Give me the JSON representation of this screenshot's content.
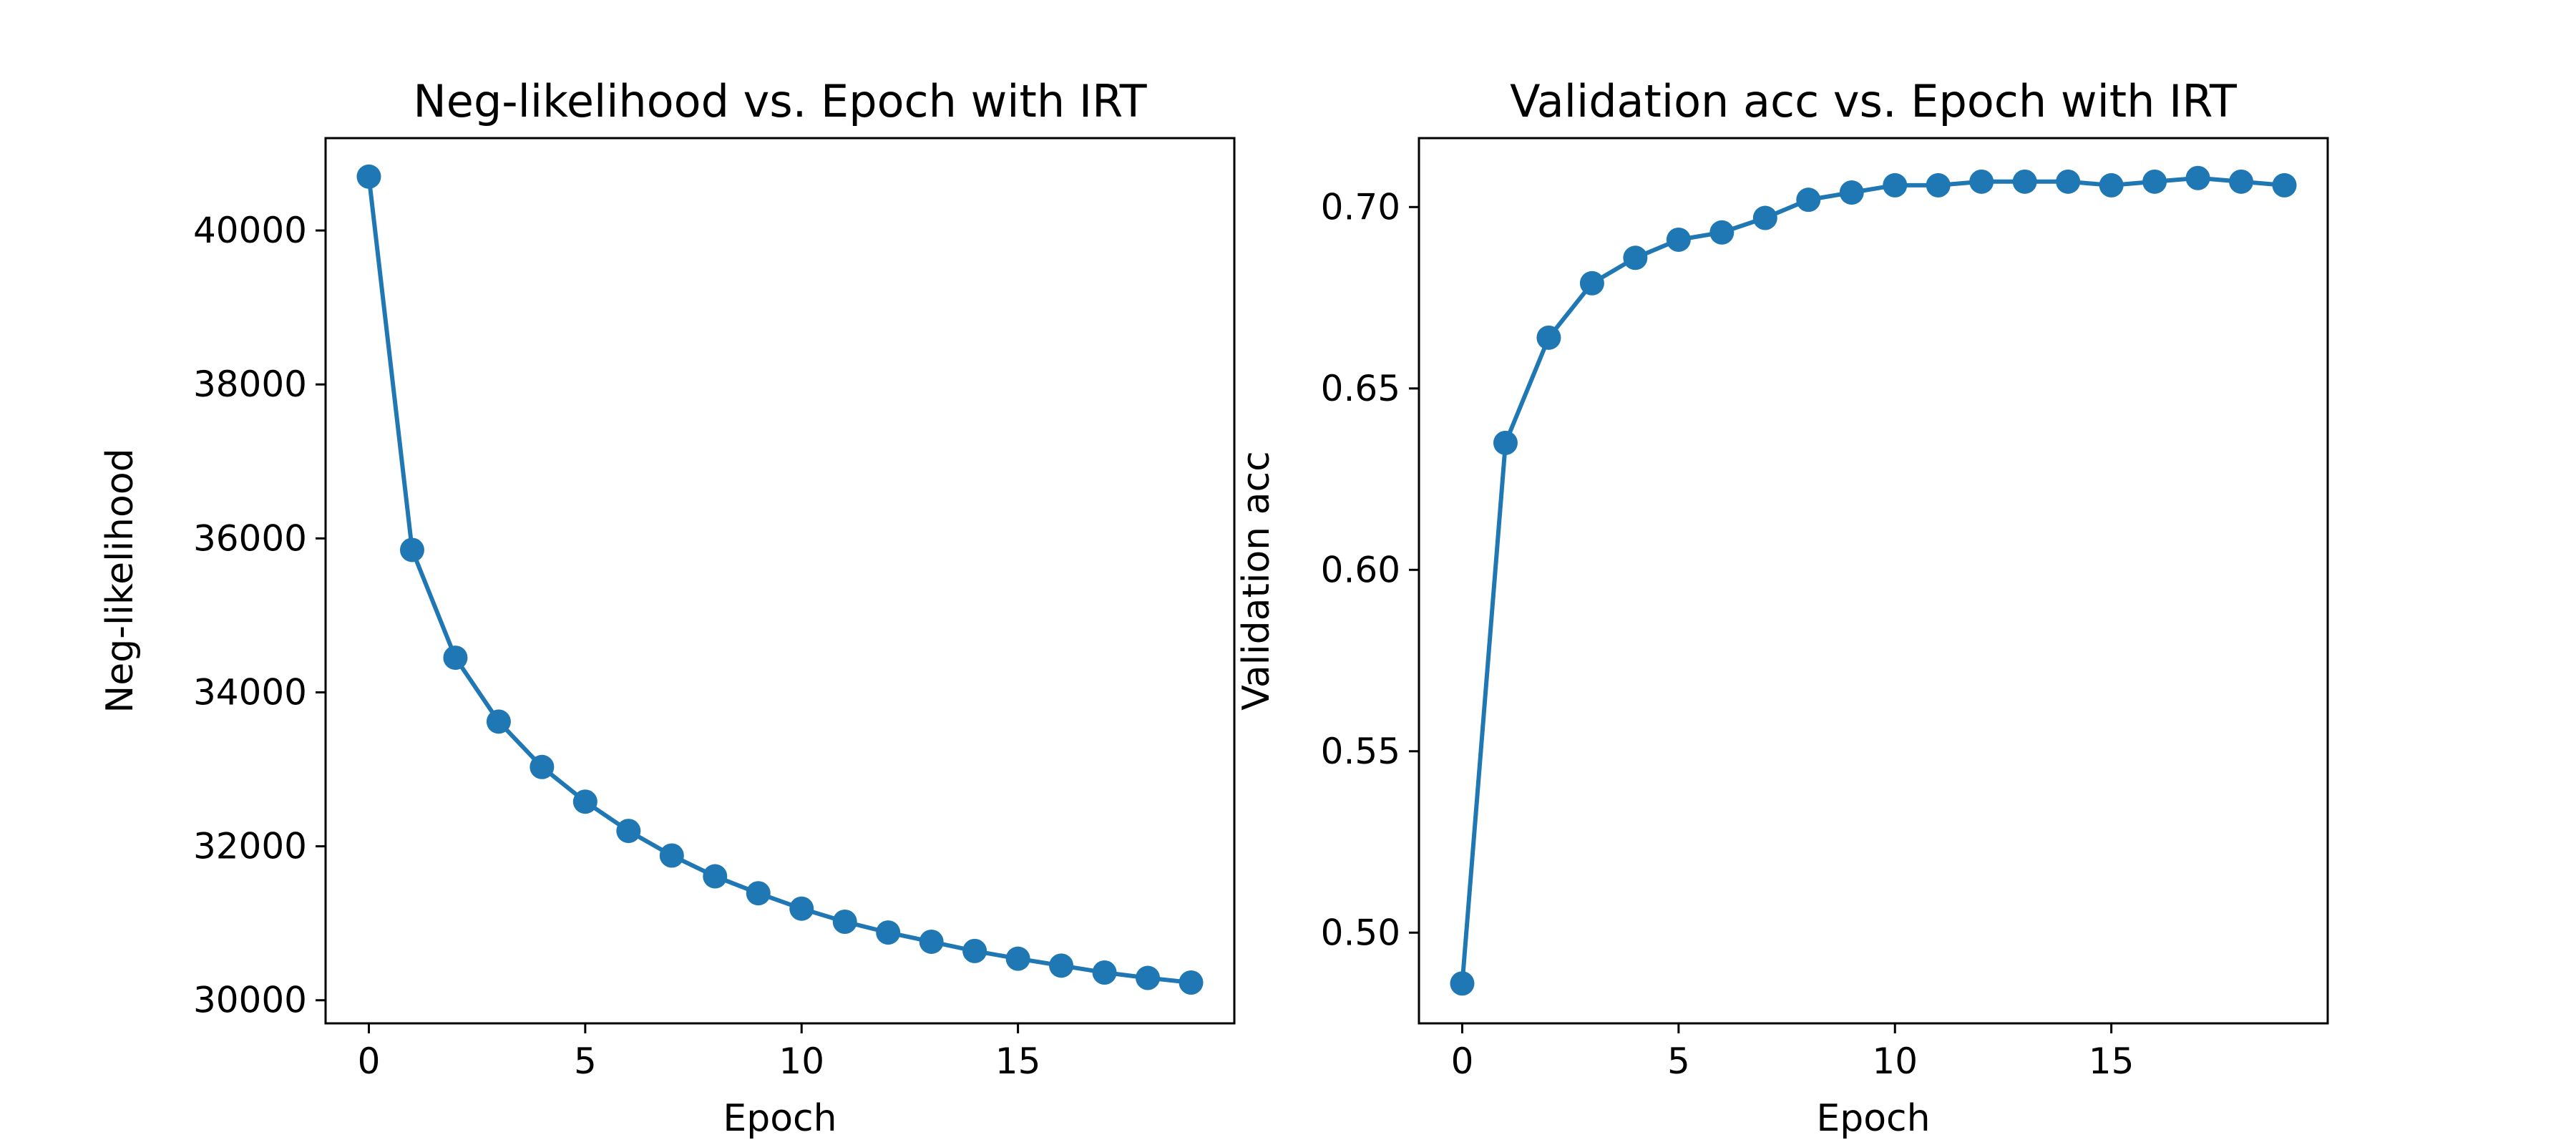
{
  "chart_data": [
    {
      "type": "line",
      "title": "Neg-likelihood vs. Epoch with IRT",
      "xlabel": "Epoch",
      "ylabel": "Neg-likelihood",
      "xlim": [
        -1,
        20
      ],
      "ylim": [
        29700,
        41200
      ],
      "xticks": [
        0,
        5,
        10,
        15
      ],
      "yticks": [
        30000,
        32000,
        34000,
        36000,
        38000,
        40000
      ],
      "grid": false,
      "color": "#1f77b4",
      "x": [
        0,
        1,
        2,
        3,
        4,
        5,
        6,
        7,
        8,
        9,
        10,
        11,
        12,
        13,
        14,
        15,
        16,
        17,
        18,
        19
      ],
      "series": [
        {
          "values": [
            40700,
            35850,
            34450,
            33620,
            33030,
            32580,
            32200,
            31880,
            31610,
            31390,
            31190,
            31020,
            30880,
            30760,
            30640,
            30540,
            30450,
            30360,
            30290,
            30230
          ]
        }
      ]
    },
    {
      "type": "line",
      "title": "Validation acc vs. Epoch with IRT",
      "xlabel": "Epoch",
      "ylabel": "Validation acc",
      "xlim": [
        -1,
        20
      ],
      "ylim": [
        0.475,
        0.719
      ],
      "xticks": [
        0,
        5,
        10,
        15
      ],
      "yticks": [
        0.5,
        0.55,
        0.6,
        0.65,
        0.7
      ],
      "grid": false,
      "color": "#1f77b4",
      "x": [
        0,
        1,
        2,
        3,
        4,
        5,
        6,
        7,
        8,
        9,
        10,
        11,
        12,
        13,
        14,
        15,
        16,
        17,
        18,
        19
      ],
      "series": [
        {
          "values": [
            0.486,
            0.635,
            0.664,
            0.679,
            0.686,
            0.691,
            0.693,
            0.697,
            0.702,
            0.704,
            0.706,
            0.706,
            0.707,
            0.707,
            0.707,
            0.706,
            0.707,
            0.708,
            0.707,
            0.706
          ]
        }
      ]
    }
  ]
}
